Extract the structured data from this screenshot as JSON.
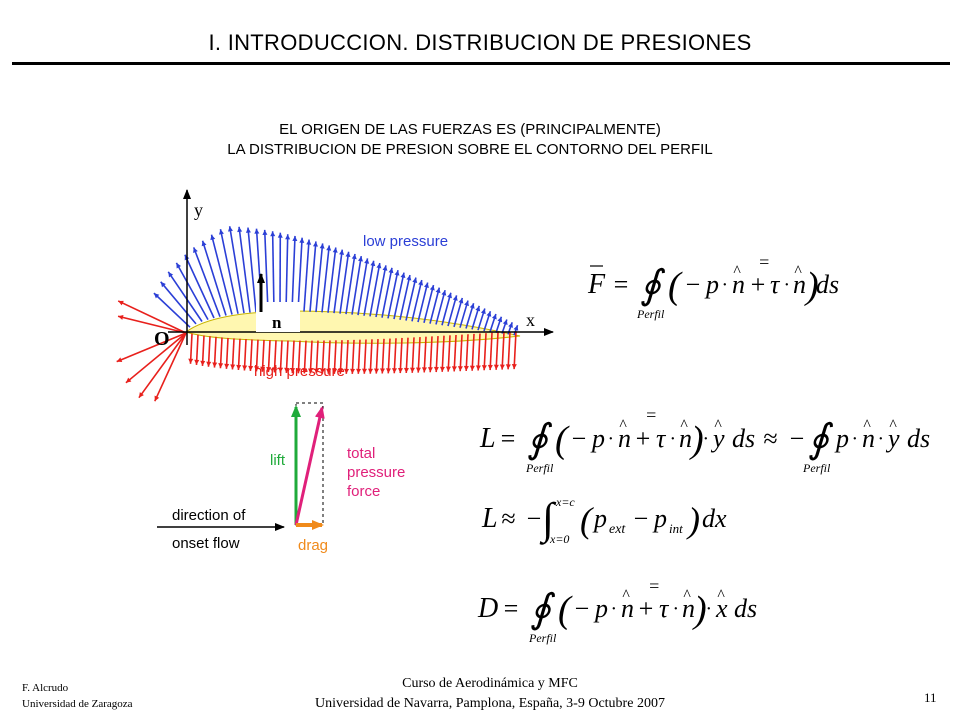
{
  "header": {
    "title": "I. INTRODUCCION. DISTRIBUCION DE PRESIONES"
  },
  "subtitle": {
    "line1": "EL ORIGEN DE LAS FUERZAS ES (PRINCIPALMENTE)",
    "line2": "LA DISTRIBUCION DE PRESION SOBRE EL CONTORNO DEL PERFIL"
  },
  "airfoil_figure": {
    "axis_y": "y",
    "axis_x": "x",
    "origin": "O",
    "normal_label": "n",
    "low_pressure": "low pressure",
    "high_pressure": "high pressure",
    "colors": {
      "low": "#2b3fd6",
      "high": "#e8201c",
      "airfoil": "#fff7b0"
    }
  },
  "force_figure": {
    "lift": "lift",
    "drag": "drag",
    "total_line1": "total",
    "total_line2": "pressure",
    "total_line3": "force",
    "direction_line1": "direction of",
    "direction_line2": "onset flow",
    "colors": {
      "lift": "#1faa3a",
      "drag": "#f08a1a",
      "total": "#e0207a"
    }
  },
  "equations": {
    "perfil": "Perfil",
    "F": "F̄ = ∮ ( − p·n̂ + τ̿·n̂ ) ds",
    "L1": "L = ∮ ( − p·n̂ + τ̿·n̂ )·ŷ ds ≈ − ∮ p·n̂·ŷ ds",
    "L2": "L ≈ − ∫ x=0 to x=c ( p_ext − p_int ) dx",
    "D": "D = ∮ ( − p·n̂ + τ̿·n̂ )·x̂ ds",
    "upper_limit": "x=c",
    "lower_limit": "x=0"
  },
  "footer": {
    "author": "F. Alcrudo",
    "university": "Universidad de Zaragoza",
    "course": "Curso de Aerodinámica y MFC",
    "venue": "Universidad de Navarra, Pamplona, España, 3-9 Octubre 2007",
    "page": "11"
  }
}
